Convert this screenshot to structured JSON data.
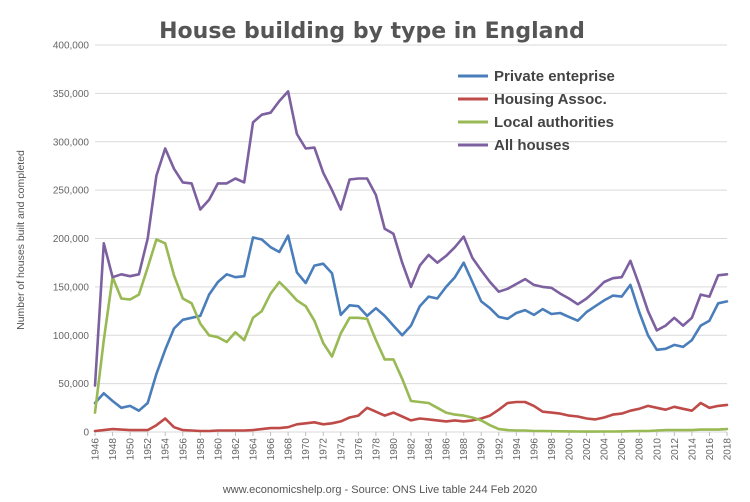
{
  "chart_data": {
    "type": "line",
    "title": "House building by type in England",
    "ylabel": "Number of houses built and completed",
    "source": "www.economicshelp.org  - Source: ONS Live table 244 Feb 2020",
    "ylim": [
      0,
      400000
    ],
    "yticks": [
      0,
      50000,
      100000,
      150000,
      200000,
      250000,
      300000,
      350000,
      400000
    ],
    "ytick_labels": [
      "0",
      "50,000",
      "100,000",
      "150,000",
      "200,000",
      "250,000",
      "300,000",
      "350,000",
      "400,000"
    ],
    "xtick_labels": [
      "1946",
      "1948",
      "1950",
      "1952",
      "1954",
      "1956",
      "1958",
      "1960",
      "1962",
      "1964",
      "1966",
      "1968",
      "1970",
      "1972",
      "1974",
      "1976",
      "1978",
      "1980",
      "1982",
      "1984",
      "1986",
      "1988",
      "1990",
      "1992",
      "1994",
      "1996",
      "1998",
      "2000",
      "2002",
      "2004",
      "2006",
      "2008",
      "2010",
      "2012",
      "2014",
      "2016",
      "2018"
    ],
    "grid": true,
    "legend_position": "top-right",
    "x": [
      1946,
      1947,
      1948,
      1949,
      1950,
      1951,
      1952,
      1953,
      1954,
      1955,
      1956,
      1957,
      1958,
      1959,
      1960,
      1961,
      1962,
      1963,
      1964,
      1965,
      1966,
      1967,
      1968,
      1969,
      1970,
      1971,
      1972,
      1973,
      1974,
      1975,
      1976,
      1977,
      1978,
      1979,
      1980,
      1981,
      1982,
      1983,
      1984,
      1985,
      1986,
      1987,
      1988,
      1989,
      1990,
      1991,
      1992,
      1993,
      1994,
      1995,
      1996,
      1997,
      1998,
      1999,
      2000,
      2001,
      2002,
      2003,
      2004,
      2005,
      2006,
      2007,
      2008,
      2009,
      2010,
      2011,
      2012,
      2013,
      2014,
      2015,
      2016,
      2017,
      2018
    ],
    "series": [
      {
        "name": "Private enteprise",
        "color": "#4a7ebb",
        "values": [
          30000,
          40000,
          32000,
          25000,
          27000,
          22000,
          30000,
          60000,
          85000,
          107000,
          116000,
          118000,
          120000,
          142000,
          155000,
          163000,
          160000,
          161000,
          201000,
          199000,
          191000,
          186000,
          203000,
          165000,
          154000,
          172000,
          174000,
          164000,
          121000,
          131000,
          130000,
          120000,
          128000,
          120000,
          110000,
          100000,
          110000,
          130000,
          140000,
          138000,
          150000,
          160000,
          175000,
          155000,
          135000,
          128000,
          119000,
          117000,
          123000,
          126000,
          121000,
          127000,
          122000,
          123000,
          119000,
          115000,
          124000,
          130000,
          136000,
          141000,
          140000,
          152000,
          124000,
          100000,
          85000,
          86000,
          90000,
          88000,
          95000,
          110000,
          115000,
          133000,
          135000
        ]
      },
      {
        "name": "Housing Assoc.",
        "color": "#be4b48",
        "values": [
          1000,
          2000,
          3000,
          2500,
          2000,
          2000,
          2000,
          7000,
          14000,
          5000,
          2000,
          1500,
          1000,
          1000,
          1500,
          1500,
          1500,
          1500,
          2000,
          3000,
          4000,
          4000,
          5000,
          8000,
          9000,
          10000,
          8000,
          9000,
          11000,
          15000,
          17000,
          25000,
          21000,
          17000,
          20000,
          16000,
          12000,
          14000,
          13000,
          12000,
          11000,
          12000,
          11000,
          12000,
          14000,
          17000,
          23000,
          30000,
          31000,
          31000,
          27000,
          21000,
          20000,
          19000,
          17000,
          16000,
          14000,
          13000,
          15000,
          18000,
          19000,
          22000,
          24000,
          27000,
          25000,
          23000,
          26000,
          24000,
          22000,
          30000,
          25000,
          27000,
          28000
        ]
      },
      {
        "name": "Local authorities",
        "color": "#98b954",
        "values": [
          20000,
          95000,
          160000,
          138000,
          137000,
          142000,
          170000,
          199000,
          195000,
          162000,
          138000,
          133000,
          112000,
          100000,
          98000,
          93000,
          103000,
          95000,
          118000,
          125000,
          143000,
          155000,
          146000,
          136000,
          130000,
          115000,
          92000,
          78000,
          102000,
          118000,
          118000,
          117000,
          95000,
          75000,
          75000,
          55000,
          32000,
          31000,
          30000,
          25000,
          20000,
          18000,
          17000,
          15000,
          12000,
          7000,
          3000,
          2000,
          1500,
          1500,
          1000,
          1000,
          800,
          700,
          600,
          500,
          400,
          400,
          500,
          500,
          600,
          800,
          1000,
          1000,
          1500,
          2000,
          2000,
          2000,
          2000,
          2500,
          2500,
          2500,
          3000
        ]
      },
      {
        "name": "All houses",
        "color": "#7d60a0",
        "values": [
          48000,
          195000,
          160000,
          163000,
          161000,
          163000,
          200000,
          265000,
          293000,
          272000,
          258000,
          257000,
          230000,
          240000,
          257000,
          257000,
          262000,
          258000,
          320000,
          328000,
          330000,
          342000,
          352000,
          308000,
          293000,
          294000,
          268000,
          250000,
          230000,
          261000,
          262000,
          262000,
          245000,
          210000,
          205000,
          175000,
          150000,
          172000,
          183000,
          175000,
          182000,
          191000,
          202000,
          180000,
          167000,
          155000,
          145000,
          148000,
          153000,
          158000,
          152000,
          150000,
          149000,
          143000,
          138000,
          132000,
          138000,
          146000,
          155000,
          159000,
          160000,
          177000,
          152000,
          125000,
          105000,
          110000,
          118000,
          110000,
          118000,
          142000,
          140000,
          162000,
          163000
        ]
      }
    ]
  }
}
